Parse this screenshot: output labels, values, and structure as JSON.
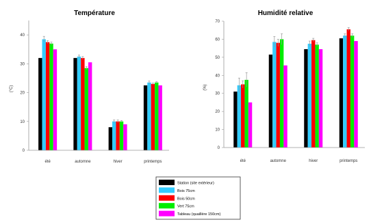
{
  "colors": {
    "series": [
      "#000000",
      "#33ccff",
      "#ff0000",
      "#00ee00",
      "#ff00ff"
    ],
    "axis": "#999999",
    "error_bar": "#999999"
  },
  "chart_data": [
    {
      "type": "bar",
      "title": "Température",
      "ylabel": "(°C)",
      "xlabel": "",
      "categories": [
        "été",
        "automne",
        "hiver",
        "printemps"
      ],
      "ylim": [
        0,
        45
      ],
      "yticks": [
        0,
        10,
        20,
        30,
        40
      ],
      "grid": false,
      "series": [
        {
          "values": [
            32,
            32,
            8,
            22.5
          ],
          "errors": [
            0,
            0,
            0,
            0
          ]
        },
        {
          "values": [
            38.5,
            32.5,
            10,
            23.5
          ],
          "errors": [
            1,
            0.5,
            0.5,
            0.5
          ]
        },
        {
          "values": [
            37.5,
            32,
            10,
            23
          ],
          "errors": [
            0.5,
            0.5,
            0.5,
            0.3
          ]
        },
        {
          "values": [
            37,
            28.5,
            10,
            23.5
          ],
          "errors": [
            0.5,
            0.5,
            0.3,
            0.3
          ]
        },
        {
          "values": [
            35,
            30.5,
            9,
            22.5
          ],
          "errors": [
            0,
            0,
            0,
            0
          ]
        }
      ]
    },
    {
      "type": "bar",
      "title": "Humidité relative",
      "ylabel": "(%)",
      "xlabel": "",
      "categories": [
        "été",
        "automne",
        "hiver",
        "printemps"
      ],
      "ylim": [
        0,
        70
      ],
      "yticks": [
        0,
        10,
        20,
        30,
        40,
        50,
        60,
        70
      ],
      "grid": false,
      "series": [
        {
          "values": [
            31,
            51.5,
            54.5,
            60.5
          ],
          "errors": [
            0,
            0,
            0,
            0
          ]
        },
        {
          "values": [
            34.5,
            58.5,
            57.5,
            62
          ],
          "errors": [
            4,
            3,
            1.5,
            1
          ]
        },
        {
          "values": [
            35,
            58,
            59.5,
            65.5
          ],
          "errors": [
            2,
            2,
            1,
            1
          ]
        },
        {
          "values": [
            37.5,
            60,
            57,
            62
          ],
          "errors": [
            4,
            3,
            1,
            1
          ]
        },
        {
          "values": [
            25,
            45.5,
            54.5,
            59
          ],
          "errors": [
            0,
            0,
            0,
            0
          ]
        }
      ]
    }
  ],
  "legend": {
    "position": "bottom-center",
    "entries": [
      "Station (site extérieur)",
      "Bois 75cm",
      "Bois 50cm",
      "Vert 75cm",
      "Tableau (quaillère 150cm)"
    ]
  }
}
